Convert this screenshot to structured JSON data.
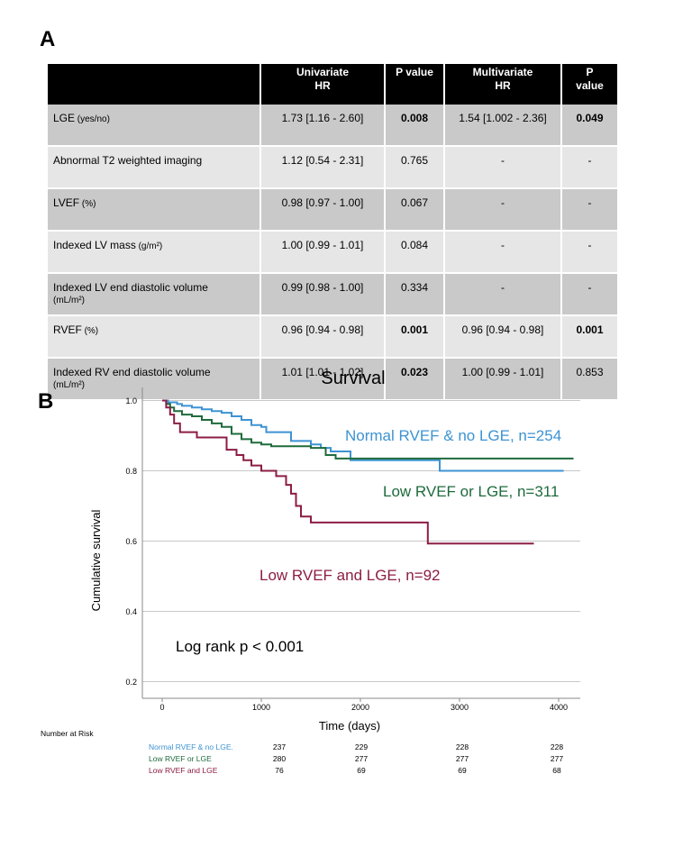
{
  "panels": {
    "a": "A",
    "b": "B"
  },
  "table": {
    "headers": [
      "",
      "Univariate\nHR",
      "P value",
      "Multivariate\nHR",
      "P\nvalue"
    ],
    "rows": [
      {
        "label": "LGE",
        "unit": "(yes/no)",
        "uni_hr": "1.73 [1.16 - 2.60]",
        "uni_p": "0.008",
        "uni_p_bold": true,
        "multi_hr": "1.54 [1.002 - 2.36]",
        "multi_p": "0.049",
        "multi_p_bold": true
      },
      {
        "label": "Abnormal T2 weighted imaging",
        "unit": "",
        "uni_hr": "1.12 [0.54 - 2.31]",
        "uni_p": "0.765",
        "uni_p_bold": false,
        "multi_hr": "-",
        "multi_p": "-",
        "multi_p_bold": false
      },
      {
        "label": "LVEF",
        "unit": "(%)",
        "uni_hr": "0.98 [0.97 - 1.00]",
        "uni_p": "0.067",
        "uni_p_bold": false,
        "multi_hr": "-",
        "multi_p": "-",
        "multi_p_bold": false
      },
      {
        "label": "Indexed LV mass",
        "unit": "(g/m²)",
        "uni_hr": "1.00 [0.99 - 1.01]",
        "uni_p": "0.084",
        "uni_p_bold": false,
        "multi_hr": "-",
        "multi_p": "-",
        "multi_p_bold": false
      },
      {
        "label": "Indexed LV end diastolic volume",
        "unit_below": "(mL/m²)",
        "uni_hr": "0.99 [0.98 - 1.00]",
        "uni_p": "0.334",
        "uni_p_bold": false,
        "multi_hr": "-",
        "multi_p": "-",
        "multi_p_bold": false
      },
      {
        "label": "RVEF",
        "unit": "(%)",
        "uni_hr": "0.96 [0.94 - 0.98]",
        "uni_p": "0.001",
        "uni_p_bold": true,
        "multi_hr": "0.96 [0.94 - 0.98]",
        "multi_p": "0.001",
        "multi_p_bold": true
      },
      {
        "label": "Indexed RV end diastolic volume",
        "unit_below": "(mL/m²)",
        "uni_hr": "1.01 [1.01 - 1.02]",
        "uni_p": "0.023",
        "uni_p_bold": true,
        "multi_hr": "1.00 [0.99 - 1.01]",
        "multi_p": "0.853",
        "multi_p_bold": false
      }
    ]
  },
  "chart_data": {
    "type": "line",
    "title": "Survival",
    "xlabel": "Time (days)",
    "ylabel": "Cumulative survival",
    "xlim": [
      -100,
      4200
    ],
    "ylim": [
      0.18,
      1.02
    ],
    "xticks": [
      0,
      1000,
      2000,
      3000,
      4000
    ],
    "yticks": [
      0.2,
      0.4,
      0.6,
      0.8,
      1.0
    ],
    "ytick_labels": [
      "0.2",
      "0.4",
      "0.6",
      "0.8",
      "1.0"
    ],
    "grid": "horizontal",
    "annotation": "Log rank p < 0.001",
    "colors": {
      "normal": "#3d93d3",
      "low_or": "#1e6b3c",
      "low_and": "#8c1d45"
    },
    "series": [
      {
        "name": "Normal RVEF & no LGE, n=254",
        "color": "#3d93d3",
        "x": [
          0,
          30,
          60,
          100,
          150,
          200,
          300,
          400,
          500,
          600,
          700,
          800,
          900,
          1000,
          1050,
          1200,
          1300,
          1500,
          1600,
          1700,
          1900,
          2800,
          4050
        ],
        "y": [
          1.0,
          1.0,
          0.995,
          0.995,
          0.99,
          0.985,
          0.98,
          0.975,
          0.97,
          0.965,
          0.955,
          0.945,
          0.93,
          0.925,
          0.91,
          0.91,
          0.885,
          0.875,
          0.865,
          0.855,
          0.83,
          0.8,
          0.8
        ]
      },
      {
        "name": "Low RVEF or LGE, n=311",
        "color": "#1e6b3c",
        "x": [
          0,
          40,
          80,
          120,
          200,
          300,
          400,
          500,
          600,
          700,
          800,
          900,
          1000,
          1100,
          1500,
          1650,
          1750,
          4150
        ],
        "y": [
          1.0,
          0.99,
          0.98,
          0.97,
          0.96,
          0.955,
          0.945,
          0.935,
          0.925,
          0.905,
          0.89,
          0.88,
          0.875,
          0.87,
          0.865,
          0.845,
          0.835,
          0.835
        ]
      },
      {
        "name": "Low RVEF and LGE, n=92",
        "color": "#8c1d45",
        "x": [
          0,
          40,
          80,
          120,
          180,
          350,
          650,
          750,
          820,
          900,
          1000,
          1150,
          1250,
          1300,
          1350,
          1400,
          1500,
          2680,
          3750
        ],
        "y": [
          1.0,
          0.98,
          0.96,
          0.935,
          0.91,
          0.895,
          0.86,
          0.845,
          0.83,
          0.815,
          0.8,
          0.785,
          0.76,
          0.735,
          0.7,
          0.67,
          0.653,
          0.593,
          0.593
        ]
      }
    ]
  },
  "risk_table": {
    "title": "Number at Risk",
    "rows": [
      {
        "label": "Normal RVEF & no LGE.",
        "color": "#3d93d3",
        "values": [
          "237",
          "229",
          "228",
          "228"
        ]
      },
      {
        "label": "Low RVEF or LGE",
        "color": "#1e6b3c",
        "values": [
          "280",
          "277",
          "277",
          "277"
        ]
      },
      {
        "label": "Low RVEF and LGE",
        "color": "#8c1d45",
        "values": [
          "76",
          "69",
          "69",
          "68"
        ]
      }
    ]
  }
}
